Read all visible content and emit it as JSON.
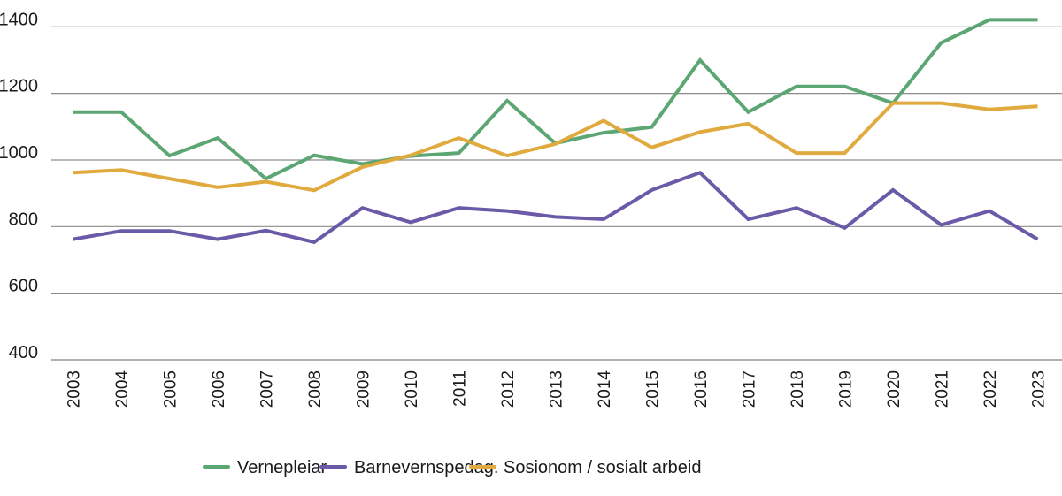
{
  "chart_data": {
    "type": "line",
    "title": "",
    "xlabel": "",
    "ylabel": "",
    "ylim": [
      400,
      1400
    ],
    "yticks": [
      400,
      600,
      800,
      1000,
      1200,
      1400
    ],
    "grid": "horizontal",
    "legend_position": "bottom",
    "x": [
      "2003",
      "2004",
      "2005",
      "2006",
      "2007",
      "2008",
      "2009",
      "2010",
      "2011",
      "2012",
      "2013",
      "2014",
      "2015",
      "2016",
      "2017",
      "2018",
      "2019",
      "2020",
      "2021",
      "2022",
      "2023"
    ],
    "series": [
      {
        "name": "Vernepleiar",
        "color": "#5ba672",
        "values": [
          1144,
          1144,
          1013,
          1066,
          944,
          1014,
          988,
          1012,
          1021,
          1178,
          1050,
          1082,
          1099,
          1300,
          1144,
          1221,
          1221,
          1171,
          1352,
          1421,
          1421
        ]
      },
      {
        "name": "Barnevernspedag.",
        "color": "#6a5aa8",
        "values": [
          762,
          787,
          787,
          762,
          788,
          753,
          856,
          813,
          856,
          847,
          829,
          822,
          910,
          962,
          822,
          856,
          796,
          910,
          805,
          847,
          762
        ]
      },
      {
        "name": "Sosionom / sosialt arbeid",
        "color": "#e0aa3e",
        "values": [
          962,
          970,
          944,
          918,
          935,
          909,
          979,
          1014,
          1066,
          1013,
          1048,
          1118,
          1038,
          1084,
          1109,
          1021,
          1021,
          1171,
          1171,
          1152,
          1161
        ]
      }
    ]
  }
}
